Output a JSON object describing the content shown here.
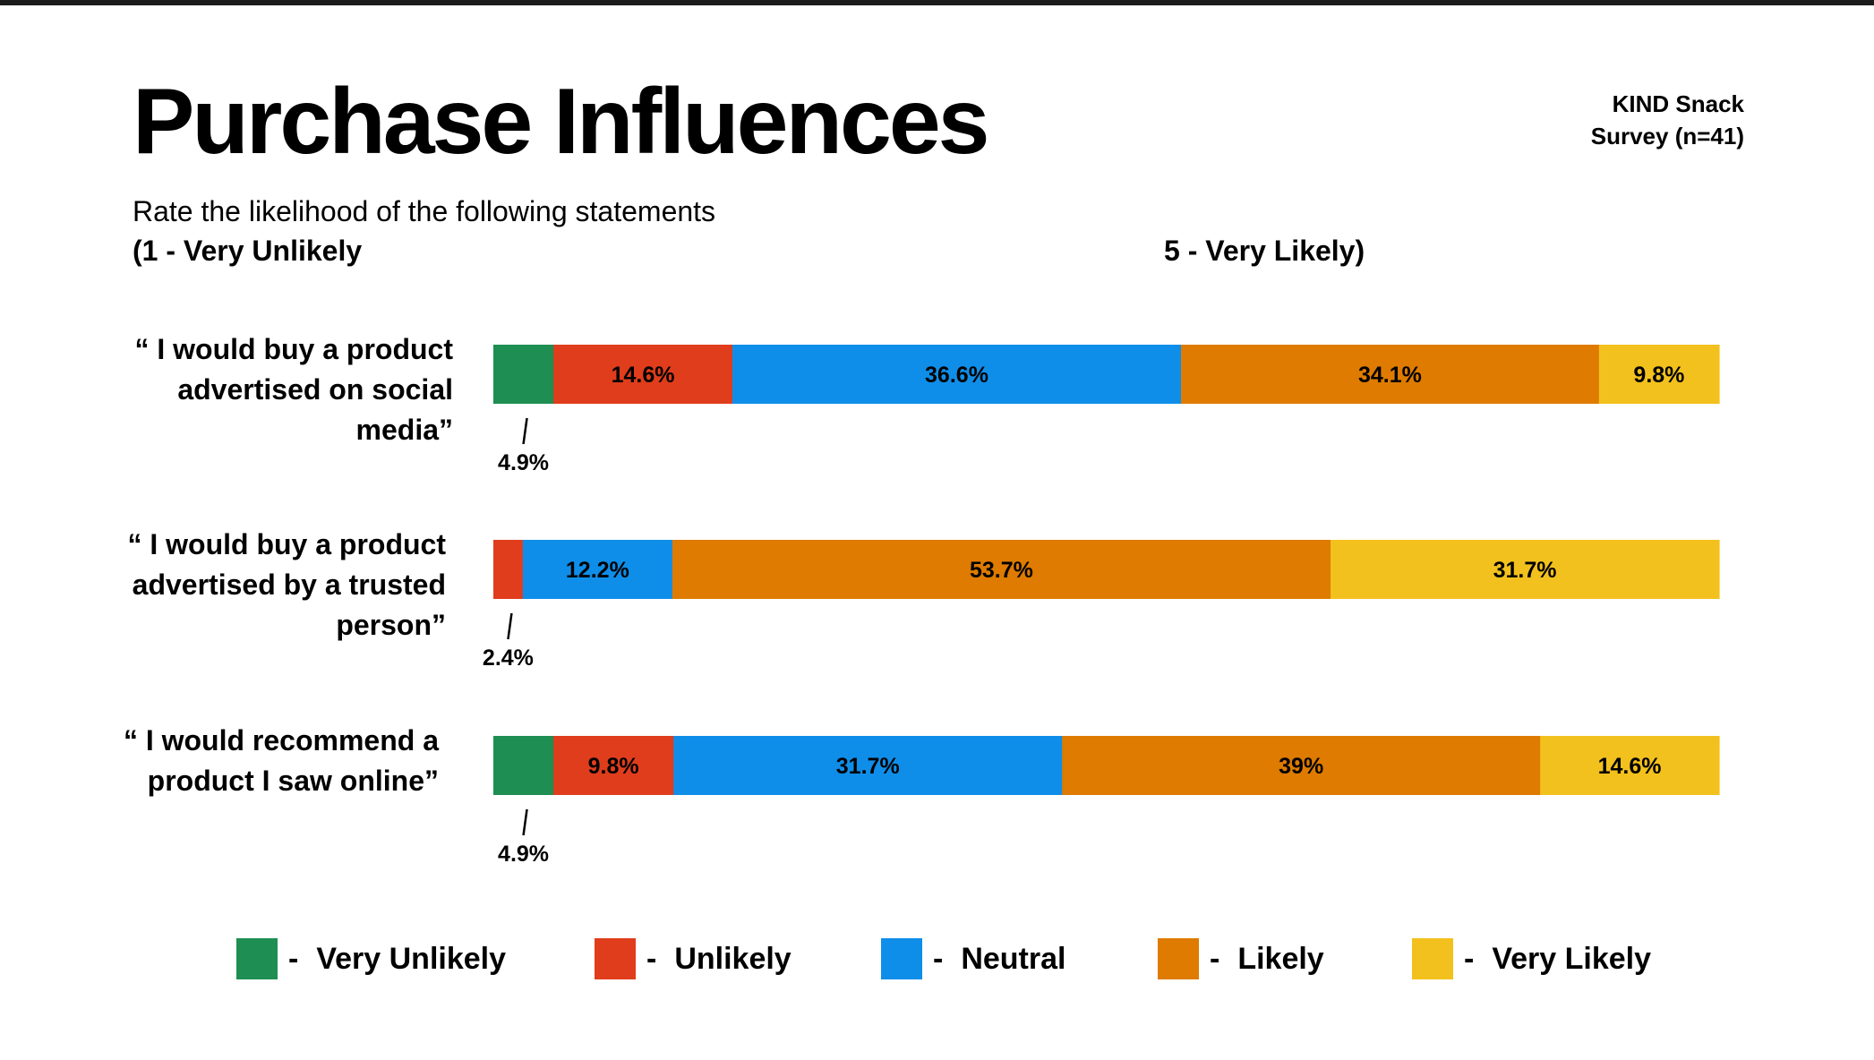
{
  "header": {
    "title": "Purchase Influences",
    "source_line1": "KIND Snack",
    "source_line2": "Survey (n=41)",
    "subtitle": "Rate the likelihood of the following statements",
    "scale_low": "(1 - Very Unlikely",
    "scale_high": "5 - Very Likely)"
  },
  "colors": {
    "very_unlikely": "#1e8e52",
    "unlikely": "#e03d1c",
    "neutral": "#0f8ee9",
    "likely": "#de7b00",
    "very_likely": "#f3c11d"
  },
  "chart_data": {
    "type": "bar",
    "orientation": "horizontal",
    "stacked": true,
    "unit": "%",
    "xlim": [
      0,
      100
    ],
    "categories": [
      [
        "“ I would buy a product",
        "advertised on social",
        "media”"
      ],
      [
        "“ I would buy a product",
        "advertised by a trusted",
        "person”"
      ],
      [
        "“ I would recommend a",
        "product I saw online”"
      ]
    ],
    "series": [
      {
        "name": "Very Unlikely",
        "color": "#1e8e52",
        "values": [
          4.9,
          0,
          4.9
        ],
        "labels": [
          "4.9%",
          "",
          "4.9%"
        ]
      },
      {
        "name": "Unlikely",
        "color": "#e03d1c",
        "values": [
          14.6,
          2.4,
          9.8
        ],
        "labels": [
          "14.6%",
          "2.4%",
          "9.8%"
        ]
      },
      {
        "name": "Neutral",
        "color": "#0f8ee9",
        "values": [
          36.6,
          12.2,
          31.7
        ],
        "labels": [
          "36.6%",
          "12.2%",
          "31.7%"
        ]
      },
      {
        "name": "Likely",
        "color": "#de7b00",
        "values": [
          34.1,
          53.7,
          39.0
        ],
        "labels": [
          "34.1%",
          "53.7%",
          "39%"
        ]
      },
      {
        "name": "Very Likely",
        "color": "#f3c11d",
        "values": [
          9.8,
          31.7,
          14.6
        ],
        "labels": [
          "9.8%",
          "31.7%",
          "14.6%"
        ]
      }
    ],
    "legend": {
      "placement": "bottom",
      "separator": "-",
      "items": [
        "Very Unlikely",
        "Unlikely",
        "Neutral",
        "Likely",
        "Very Likely"
      ]
    }
  }
}
